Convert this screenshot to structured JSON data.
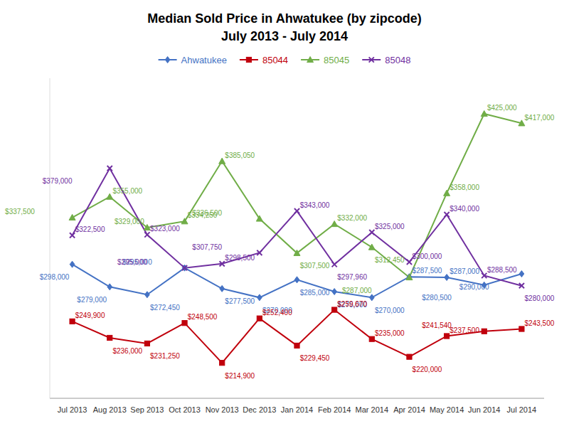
{
  "chart_data": {
    "type": "line",
    "title": "Median Sold Price in Ahwatukee (by zipcode)",
    "subtitle": "July 2013 - July 2014",
    "categories": [
      "Jul 2013",
      "Aug 2013",
      "Sep 2013",
      "Oct 2013",
      "Nov 2013",
      "Dec 2013",
      "Jan 2014",
      "Feb 2014",
      "Mar 2014",
      "Apr 2014",
      "May 2014",
      "Jun 2014",
      "Jul 2014"
    ],
    "series": [
      {
        "name": "Ahwatukee",
        "color": "#4472C4",
        "marker": "diamond",
        "values": [
          298000,
          279000,
          272450,
          295000,
          277500,
          270000,
          285000,
          275000,
          270000,
          287500,
          287000,
          280500,
          290000
        ],
        "value_labels": [
          "$298,000",
          "$279,000",
          "$272,450",
          "$295,000",
          "$277,500",
          "$270,000",
          "$285,000",
          "$275,000",
          "$270,000",
          "$287,500",
          "$287,000",
          "$280,500",
          "$290,000"
        ]
      },
      {
        "name": "85044",
        "color": "#C0000C",
        "marker": "square",
        "values": [
          249900,
          236000,
          231250,
          248500,
          214900,
          252400,
          229450,
          259670,
          235000,
          220000,
          237500,
          241540,
          243500
        ],
        "value_labels": [
          "$249,900",
          "$236,000",
          "$231,250",
          "$248,500",
          "$214,900",
          "$252,400",
          "$229,450",
          "$259,670",
          "$235,000",
          "$220,000",
          "$237,500",
          "$241,540",
          "$243,500"
        ]
      },
      {
        "name": "85045",
        "color": "#70AD47",
        "marker": "triangle",
        "values": [
          337500,
          355000,
          329000,
          334250,
          385050,
          336500,
          307500,
          332000,
          312450,
          287000,
          358000,
          425000,
          417000
        ],
        "value_labels": [
          "$337,500",
          "$355,000",
          "$329,000",
          "$334,250",
          "$385,050",
          "$336,500",
          "$307,500",
          "$332,000",
          "$312,450",
          "$287,000",
          "$358,000",
          "$425,000",
          "$417,000"
        ]
      },
      {
        "name": "85048",
        "color": "#7030A0",
        "marker": "x",
        "values": [
          322500,
          379000,
          323000,
          295000,
          298500,
          307750,
          343000,
          297960,
          325000,
          300000,
          340000,
          288500,
          280000
        ],
        "value_labels": [
          "$322,500",
          "$379,000",
          "$323,000",
          "$295,000",
          "$298,500",
          "$307,750",
          "$343,000",
          "$297,960",
          "$325,000",
          "$300,000",
          "$340,000",
          "$288,500",
          "$280,000"
        ]
      }
    ],
    "ylim": [
      185000,
      455000
    ],
    "grid": false,
    "legend": "top",
    "data_labels": true,
    "tick_labels": "x"
  }
}
